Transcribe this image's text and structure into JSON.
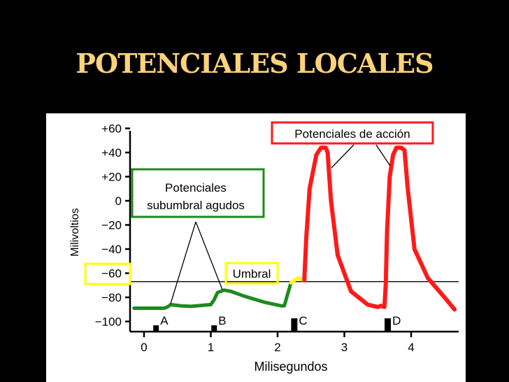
{
  "slide": {
    "title": "POTENCIALES LOCALES"
  },
  "colors": {
    "background": "#000000",
    "title": "#ffd27a",
    "subthreshold": "#1e8a1e",
    "threshold": "#ffff00",
    "action": "#ff1a1a"
  },
  "chart_data": {
    "type": "line",
    "xlabel": "Milisegundos",
    "ylabel": "Milivoltios",
    "xlim": [
      -0.2,
      4.7
    ],
    "ylim": [
      -100,
      60
    ],
    "x_ticks": [
      "0",
      "1",
      "2",
      "3",
      "4"
    ],
    "y_ticks": [
      "+60",
      "+40",
      "+20",
      "0",
      "−20",
      "−40",
      "−60",
      "−80",
      "−100"
    ],
    "threshold_mV": -67,
    "series": [
      {
        "role": "subthreshold",
        "x": [
          -0.15,
          0.3,
          0.35,
          0.4,
          0.55,
          0.7,
          1.0,
          1.05,
          1.1,
          1.2,
          1.3,
          1.5,
          1.8,
          2.05,
          2.1,
          2.2
        ],
        "y": [
          -89,
          -89,
          -88,
          -86,
          -87,
          -87.5,
          -86,
          -82,
          -76,
          -74,
          -75,
          -79,
          -84,
          -87,
          -87,
          -68
        ]
      },
      {
        "role": "threshold",
        "x": [
          2.2,
          2.3,
          2.4
        ],
        "y": [
          -68,
          -64,
          -66
        ]
      },
      {
        "role": "action",
        "x": [
          2.4,
          2.43,
          2.48,
          2.58,
          2.65,
          2.72,
          2.75,
          2.8,
          2.9,
          3.1,
          3.35,
          3.5,
          3.55,
          3.6,
          3.62,
          3.64,
          3.68,
          3.73,
          3.78,
          3.85,
          3.9,
          3.95,
          4.05,
          4.25,
          4.5,
          4.65
        ],
        "y": [
          -66,
          -30,
          10,
          38,
          44,
          44,
          40,
          0,
          -45,
          -75,
          -86,
          -88,
          -87,
          -88,
          -70,
          -25,
          20,
          38,
          44,
          44,
          42,
          10,
          -40,
          -64,
          -80,
          -90
        ]
      }
    ],
    "stimuli": [
      {
        "label": "A",
        "x": 0.18
      },
      {
        "label": "B",
        "x": 1.05
      },
      {
        "label": "C",
        "x": 2.25
      },
      {
        "label": "D",
        "x": 3.65
      }
    ],
    "annotations": {
      "subthreshold": {
        "lines": [
          "Potenciales",
          "subumbral agudos"
        ]
      },
      "threshold": {
        "text": "Umbral"
      },
      "action": {
        "text": "Potenciales de acción"
      }
    }
  }
}
